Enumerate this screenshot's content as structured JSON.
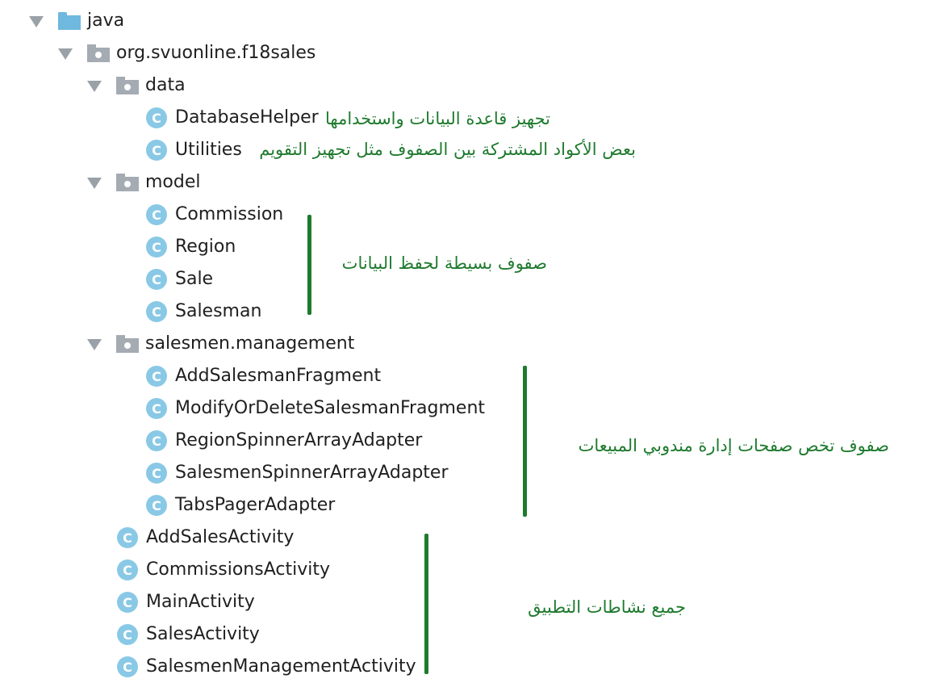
{
  "tree": {
    "root": "java",
    "package": "org.svuonline.f18sales",
    "class_glyph": "C",
    "data": {
      "label": "data",
      "classes": [
        "DatabaseHelper",
        "Utilities"
      ]
    },
    "model": {
      "label": "model",
      "classes": [
        "Commission",
        "Region",
        "Sale",
        "Salesman"
      ]
    },
    "salesmen": {
      "label": "salesmen.management",
      "classes": [
        "AddSalesmanFragment",
        "ModifyOrDeleteSalesmanFragment",
        "RegionSpinnerArrayAdapter",
        "SalesmenSpinnerArrayAdapter",
        "TabsPagerAdapter"
      ]
    },
    "activities": [
      "AddSalesActivity",
      "CommissionsActivity",
      "MainActivity",
      "SalesActivity",
      "SalesmenManagementActivity"
    ]
  },
  "notes": {
    "database_helper": "تجهيز قاعدة البيانات واستخدامها",
    "utilities": "بعض الأكواد المشتركة بين الصفوف مثل تجهيز التقويم",
    "model": "صفوف بسيطة لحفظ البيانات",
    "salesmen": "صفوف تخص صفحات إدارة مندوبي المبيعات",
    "activities": "جميع نشاطات التطبيق"
  },
  "colors": {
    "annotation": "#1e7a2e",
    "class_icon": "#89c9e6",
    "java_folder": "#6fb8de",
    "package_icon": "#a4abb3"
  }
}
